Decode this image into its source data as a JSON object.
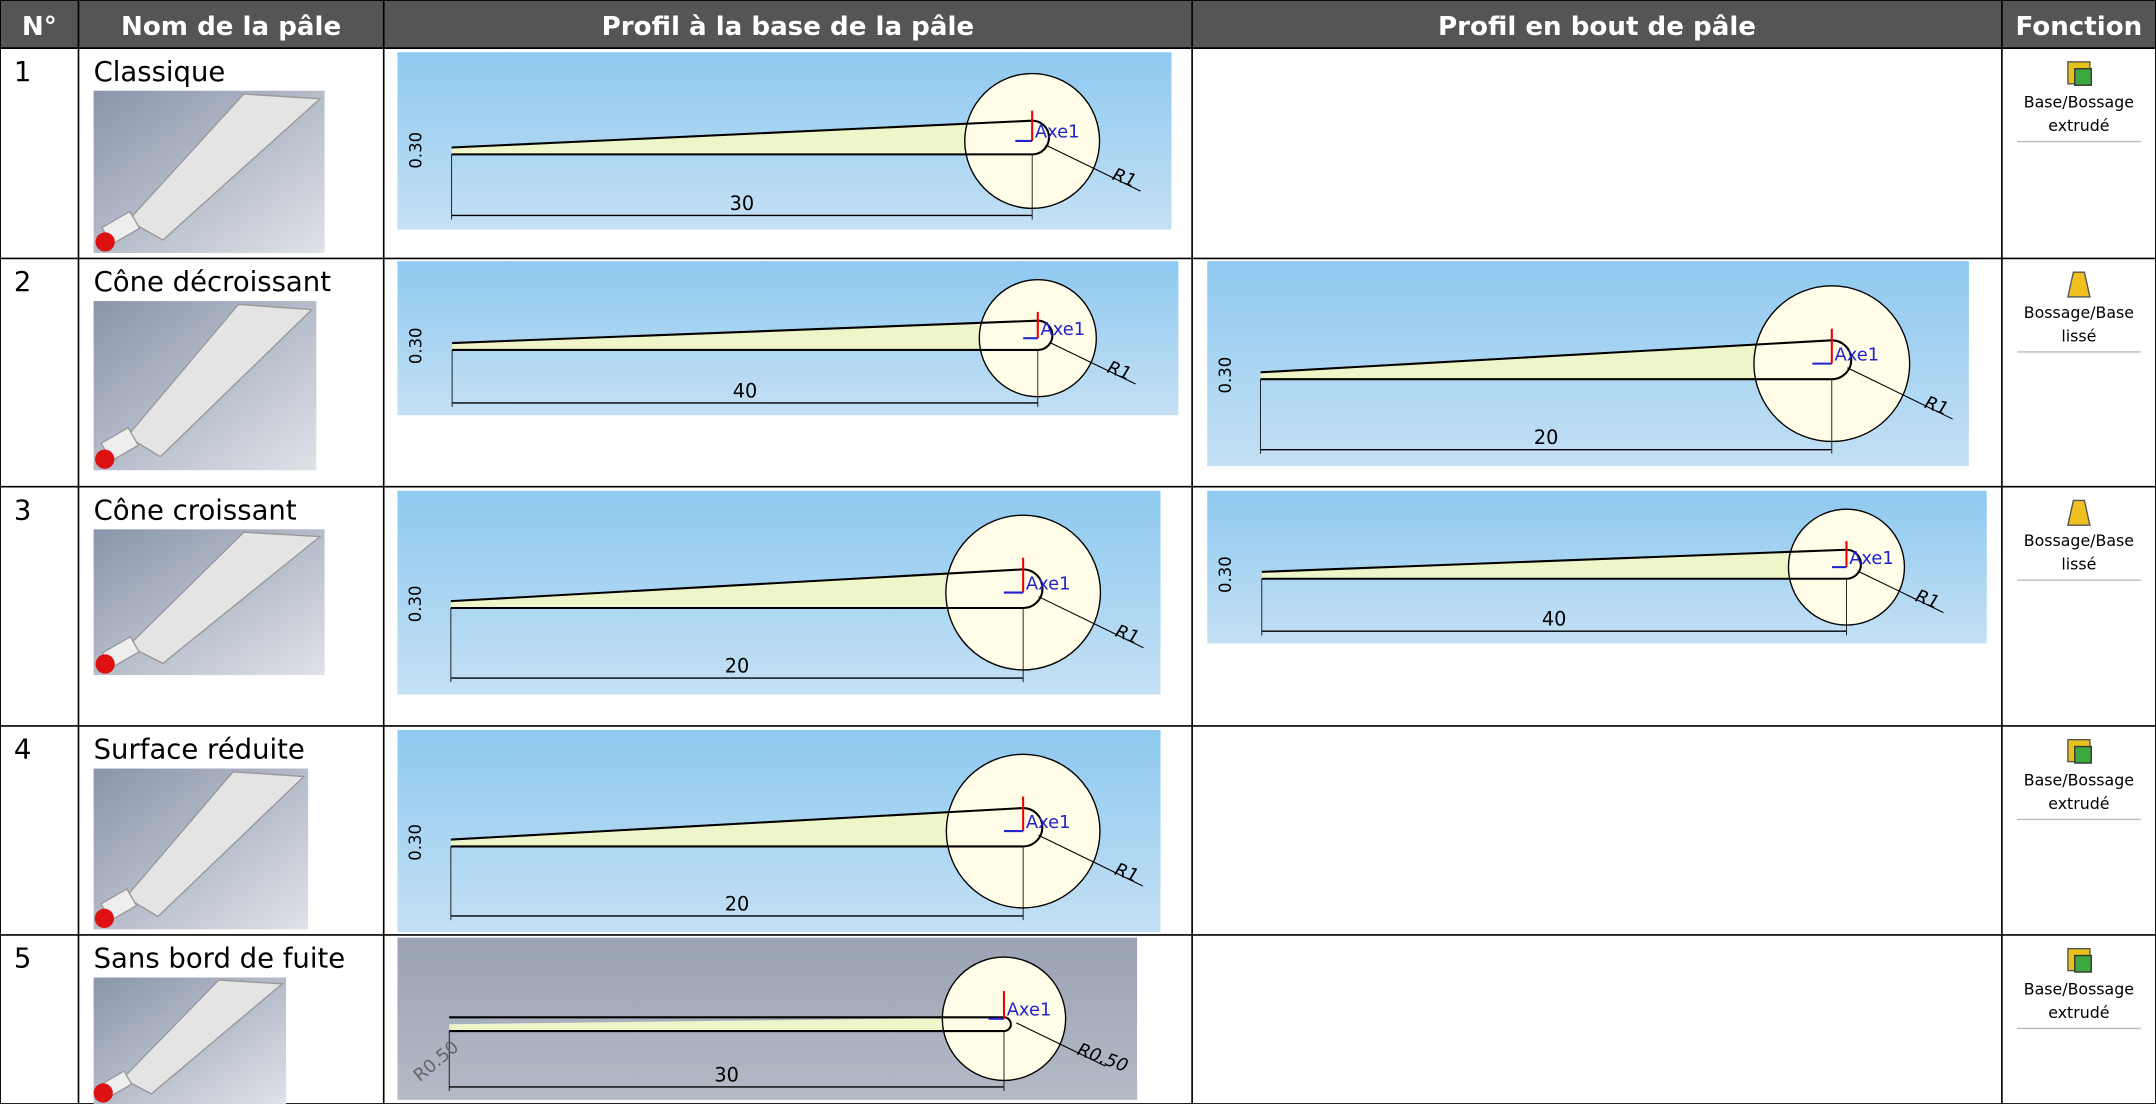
{
  "table": {
    "headers": [
      "N°",
      "Nom de la pâle",
      "Profil à la base de la pâle",
      "Profil en bout de pâle",
      "Fonction"
    ],
    "rows": [
      {
        "number": "1",
        "name": "Classique",
        "base_profile": {
          "thickness": "0.30",
          "length": "30",
          "radius": "R1",
          "axis": "Axe1"
        },
        "function": [
          "Base/Bossage",
          "extrudé"
        ]
      },
      {
        "number": "2",
        "name": "Cône décroissant",
        "base_profile": {
          "thickness": "0.30",
          "length": "40",
          "radius": "R1",
          "axis": "Axe1"
        },
        "tip_profile": {
          "thickness": "0.30",
          "length": "20",
          "radius": "R1",
          "axis": "Axe1"
        },
        "function": [
          "Bossage/Base",
          "lissé"
        ]
      },
      {
        "number": "3",
        "name": "Cône croissant",
        "base_profile": {
          "thickness": "0.30",
          "length": "20",
          "radius": "R1",
          "axis": "Axe1"
        },
        "tip_profile": {
          "thickness": "0.30",
          "length": "40",
          "radius": "R1",
          "axis": "Axe1"
        },
        "function": [
          "Bossage/Base",
          "lissé"
        ]
      },
      {
        "number": "4",
        "name": "Surface réduite",
        "base_profile": {
          "thickness": "0.30",
          "length": "20",
          "radius": "R1",
          "axis": "Axe1"
        },
        "function": [
          "Base/Bossage",
          "extrudé"
        ]
      },
      {
        "number": "5",
        "name": "Sans bord de fuite",
        "base_profile": {
          "radius_left": "R0.50",
          "length": "30",
          "radius": "R0.50",
          "axis": "Axe1"
        },
        "function": [
          "Base/Bossage",
          "extrudé"
        ]
      }
    ]
  }
}
